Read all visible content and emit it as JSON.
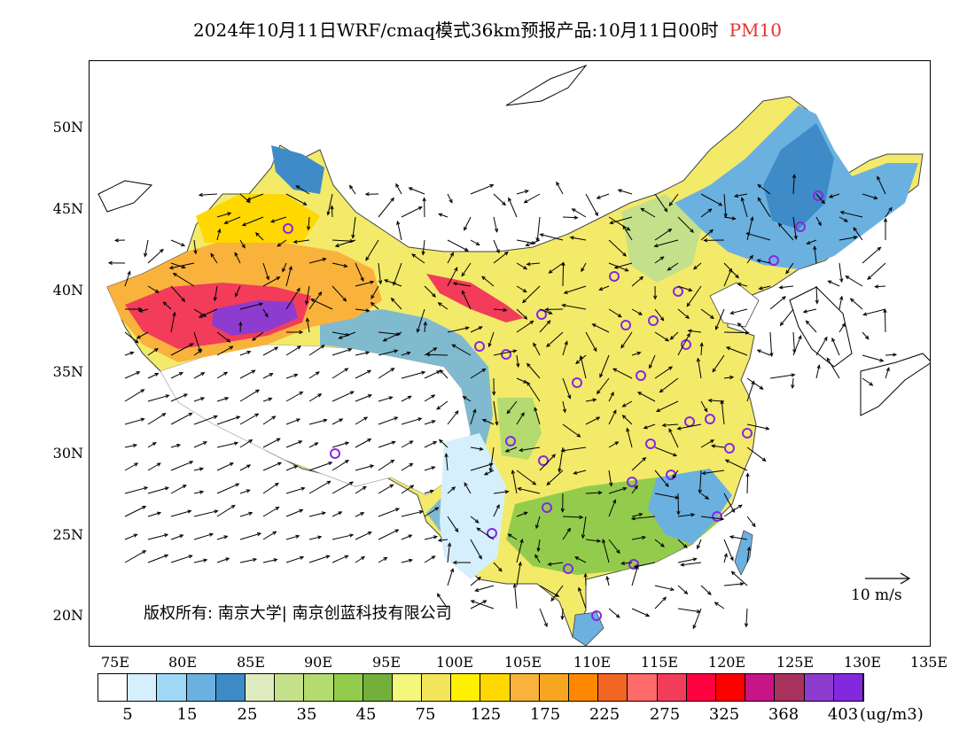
{
  "title": "2024年10月11日WRF/cmaq模式36km预报产品:10月11日00时",
  "pollutant": "PM10",
  "copyright": "版权所有: 南京大学| 南京创蓝科技有限公司",
  "wind_scale_label": "10  m/s",
  "unit": "(ug/m3)",
  "lat_ticks": [
    "50N",
    "45N",
    "40N",
    "35N",
    "30N",
    "25N",
    "20N"
  ],
  "lon_ticks": [
    "75E",
    "80E",
    "85E",
    "90E",
    "95E",
    "100E",
    "105E",
    "110E",
    "115E",
    "120E",
    "125E",
    "130E",
    "135E"
  ],
  "colorbar": {
    "colors": [
      "#ffffff",
      "#d5effc",
      "#9fd8f5",
      "#6bb1e0",
      "#3f8bc7",
      "#e0ecbf",
      "#c4e08a",
      "#b3db6f",
      "#93cc4c",
      "#72b03b",
      "#f3f77a",
      "#f4e65a",
      "#fff100",
      "#ffd800",
      "#f9b23c",
      "#f7a61f",
      "#ff8800",
      "#f26522",
      "#ff6a6a",
      "#f23c5a",
      "#ff0040",
      "#ff0000",
      "#c71585",
      "#a8325e",
      "#8e3ccf",
      "#8428e0"
    ],
    "labels": [
      "5",
      "15",
      "25",
      "35",
      "45",
      "75",
      "125",
      "175",
      "225",
      "275",
      "325",
      "368",
      "403"
    ]
  }
}
